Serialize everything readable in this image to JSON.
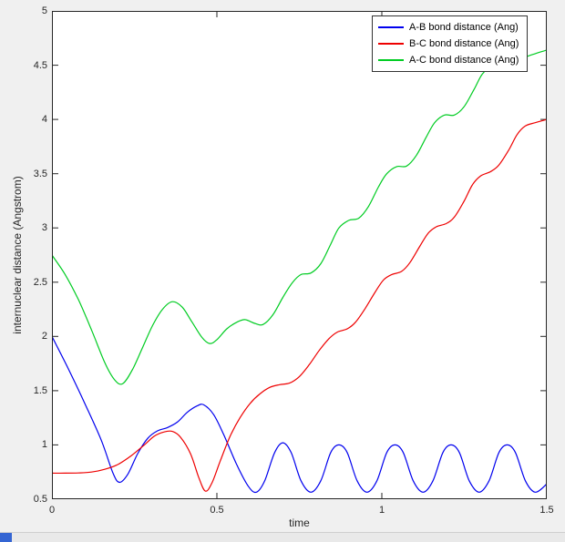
{
  "window": {
    "background_color": "#f0f0f0",
    "plot_background_color": "#ffffff",
    "fragment_color": "#3465d3"
  },
  "chart_data": {
    "type": "line",
    "title": "",
    "xlabel": "time",
    "ylabel": "internuclear distance (Angstrom)",
    "xlim": [
      0,
      1.5
    ],
    "ylim": [
      0.5,
      5
    ],
    "grid": false,
    "legend_position": "top-right",
    "axis_color": "#262626",
    "xticks": {
      "values": [
        0,
        0.5,
        1,
        1.5
      ],
      "labels": [
        "0",
        "0.5",
        "1",
        "1.5"
      ]
    },
    "yticks": {
      "values": [
        0.5,
        1,
        1.5,
        2,
        2.5,
        3,
        3.5,
        4,
        4.5,
        5
      ],
      "labels": [
        "0.5",
        "1",
        "1.5",
        "2",
        "2.5",
        "3",
        "3.5",
        "4",
        "4.5",
        "5"
      ]
    },
    "series": [
      {
        "name": "A-B bond distance (Ang)",
        "color": "#0000ee",
        "points": [
          [
            0,
            2.0
          ],
          [
            0.05,
            1.7
          ],
          [
            0.1,
            1.38
          ],
          [
            0.15,
            1.04
          ],
          [
            0.185,
            0.74
          ],
          [
            0.205,
            0.655
          ],
          [
            0.23,
            0.73
          ],
          [
            0.26,
            0.92
          ],
          [
            0.29,
            1.06
          ],
          [
            0.32,
            1.13
          ],
          [
            0.35,
            1.16
          ],
          [
            0.38,
            1.21
          ],
          [
            0.41,
            1.3
          ],
          [
            0.44,
            1.36
          ],
          [
            0.46,
            1.37
          ],
          [
            0.49,
            1.28
          ],
          [
            0.52,
            1.1
          ],
          [
            0.56,
            0.82
          ],
          [
            0.595,
            0.62
          ],
          [
            0.62,
            0.565
          ],
          [
            0.645,
            0.67
          ],
          [
            0.675,
            0.93
          ],
          [
            0.7,
            1.02
          ],
          [
            0.725,
            0.93
          ],
          [
            0.755,
            0.67
          ],
          [
            0.785,
            0.565
          ],
          [
            0.815,
            0.67
          ],
          [
            0.845,
            0.93
          ],
          [
            0.87,
            1.0
          ],
          [
            0.895,
            0.93
          ],
          [
            0.925,
            0.67
          ],
          [
            0.955,
            0.565
          ],
          [
            0.985,
            0.67
          ],
          [
            1.015,
            0.93
          ],
          [
            1.04,
            1.0
          ],
          [
            1.065,
            0.93
          ],
          [
            1.095,
            0.67
          ],
          [
            1.125,
            0.565
          ],
          [
            1.155,
            0.67
          ],
          [
            1.185,
            0.93
          ],
          [
            1.21,
            1.0
          ],
          [
            1.235,
            0.93
          ],
          [
            1.265,
            0.67
          ],
          [
            1.295,
            0.565
          ],
          [
            1.325,
            0.67
          ],
          [
            1.355,
            0.93
          ],
          [
            1.38,
            1.0
          ],
          [
            1.405,
            0.93
          ],
          [
            1.435,
            0.67
          ],
          [
            1.465,
            0.565
          ],
          [
            1.5,
            0.64
          ]
        ]
      },
      {
        "name": "B-C bond distance (Ang)",
        "color": "#ee0000",
        "points": [
          [
            0,
            0.74
          ],
          [
            0.04,
            0.74
          ],
          [
            0.08,
            0.742
          ],
          [
            0.12,
            0.75
          ],
          [
            0.16,
            0.775
          ],
          [
            0.2,
            0.82
          ],
          [
            0.24,
            0.9
          ],
          [
            0.28,
            1.0
          ],
          [
            0.31,
            1.08
          ],
          [
            0.34,
            1.12
          ],
          [
            0.365,
            1.125
          ],
          [
            0.39,
            1.07
          ],
          [
            0.42,
            0.92
          ],
          [
            0.445,
            0.7
          ],
          [
            0.465,
            0.575
          ],
          [
            0.485,
            0.65
          ],
          [
            0.51,
            0.85
          ],
          [
            0.54,
            1.08
          ],
          [
            0.57,
            1.25
          ],
          [
            0.6,
            1.38
          ],
          [
            0.63,
            1.47
          ],
          [
            0.66,
            1.53
          ],
          [
            0.69,
            1.555
          ],
          [
            0.72,
            1.57
          ],
          [
            0.75,
            1.63
          ],
          [
            0.78,
            1.74
          ],
          [
            0.81,
            1.87
          ],
          [
            0.84,
            1.98
          ],
          [
            0.865,
            2.04
          ],
          [
            0.895,
            2.07
          ],
          [
            0.92,
            2.13
          ],
          [
            0.95,
            2.26
          ],
          [
            0.98,
            2.41
          ],
          [
            1.005,
            2.52
          ],
          [
            1.03,
            2.57
          ],
          [
            1.06,
            2.6
          ],
          [
            1.085,
            2.68
          ],
          [
            1.115,
            2.83
          ],
          [
            1.14,
            2.95
          ],
          [
            1.165,
            3.01
          ],
          [
            1.195,
            3.04
          ],
          [
            1.22,
            3.1
          ],
          [
            1.25,
            3.25
          ],
          [
            1.275,
            3.4
          ],
          [
            1.3,
            3.48
          ],
          [
            1.33,
            3.52
          ],
          [
            1.355,
            3.58
          ],
          [
            1.385,
            3.72
          ],
          [
            1.41,
            3.86
          ],
          [
            1.435,
            3.94
          ],
          [
            1.465,
            3.97
          ],
          [
            1.5,
            4.0
          ]
        ]
      },
      {
        "name": "A-C bond distance (Ang)",
        "color": "#00cc22",
        "points": [
          [
            0,
            2.75
          ],
          [
            0.04,
            2.57
          ],
          [
            0.08,
            2.34
          ],
          [
            0.12,
            2.06
          ],
          [
            0.16,
            1.76
          ],
          [
            0.19,
            1.6
          ],
          [
            0.215,
            1.565
          ],
          [
            0.245,
            1.7
          ],
          [
            0.275,
            1.9
          ],
          [
            0.305,
            2.1
          ],
          [
            0.335,
            2.25
          ],
          [
            0.365,
            2.32
          ],
          [
            0.395,
            2.27
          ],
          [
            0.425,
            2.13
          ],
          [
            0.455,
            1.99
          ],
          [
            0.478,
            1.935
          ],
          [
            0.5,
            1.97
          ],
          [
            0.53,
            2.07
          ],
          [
            0.56,
            2.13
          ],
          [
            0.585,
            2.155
          ],
          [
            0.615,
            2.12
          ],
          [
            0.64,
            2.11
          ],
          [
            0.67,
            2.2
          ],
          [
            0.7,
            2.36
          ],
          [
            0.73,
            2.5
          ],
          [
            0.755,
            2.57
          ],
          [
            0.785,
            2.585
          ],
          [
            0.815,
            2.67
          ],
          [
            0.845,
            2.85
          ],
          [
            0.87,
            3.0
          ],
          [
            0.9,
            3.07
          ],
          [
            0.93,
            3.09
          ],
          [
            0.96,
            3.2
          ],
          [
            0.99,
            3.38
          ],
          [
            1.015,
            3.5
          ],
          [
            1.045,
            3.565
          ],
          [
            1.075,
            3.57
          ],
          [
            1.105,
            3.67
          ],
          [
            1.135,
            3.84
          ],
          [
            1.16,
            3.97
          ],
          [
            1.19,
            4.04
          ],
          [
            1.22,
            4.04
          ],
          [
            1.25,
            4.12
          ],
          [
            1.28,
            4.28
          ],
          [
            1.305,
            4.42
          ],
          [
            1.335,
            4.49
          ],
          [
            1.37,
            4.51
          ],
          [
            1.4,
            4.53
          ],
          [
            1.44,
            4.58
          ],
          [
            1.5,
            4.64
          ]
        ]
      }
    ]
  }
}
